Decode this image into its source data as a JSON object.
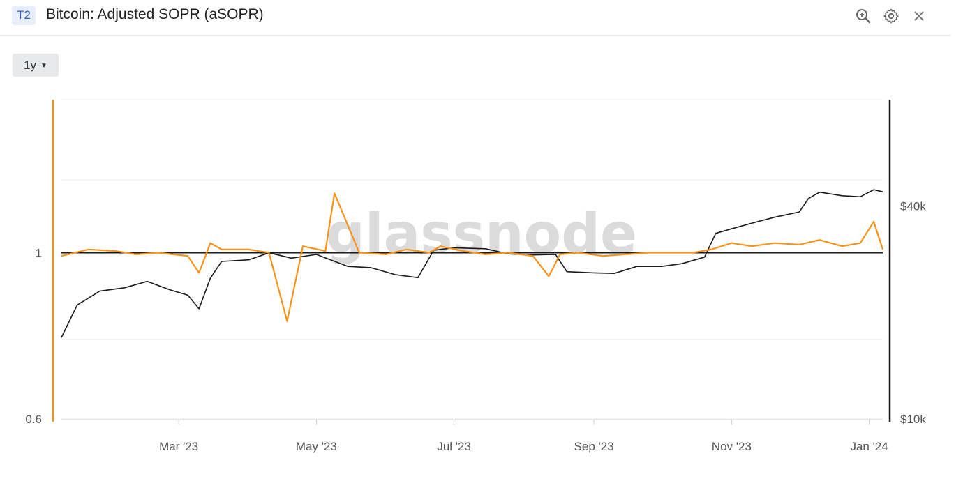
{
  "header": {
    "badge": "T2",
    "title": "Bitcoin: Adjusted SOPR (aSOPR)"
  },
  "icons": [
    "zoom-icon",
    "gear-icon",
    "close-icon"
  ],
  "range_selector": {
    "value": "1y"
  },
  "watermark": "glassnode",
  "colors": {
    "asopr": "#f7931a",
    "price": "#1a1a1a",
    "grid": "#eeeeee",
    "baseline": "#1a1a1a"
  },
  "chart_data": {
    "type": "line",
    "title": "Bitcoin: Adjusted SOPR (aSOPR)",
    "x_ticks": [
      "Mar '23",
      "May '23",
      "Jul '23",
      "Sep '23",
      "Nov '23",
      "Jan '24"
    ],
    "x_tick_dates": [
      "2023-03-01",
      "2023-05-01",
      "2023-07-01",
      "2023-09-01",
      "2023-11-01",
      "2024-01-01"
    ],
    "x_range": [
      "2023-01-08",
      "2024-01-07"
    ],
    "y_left": {
      "ticks": [
        0.6,
        1
      ],
      "tick_labels": [
        "0.6",
        "1"
      ],
      "scale": "log",
      "range": [
        0.6,
        1.6
      ],
      "reference_line": 1
    },
    "y_right": {
      "ticks": [
        10000,
        40000
      ],
      "tick_labels": [
        "$10k",
        "$40k"
      ],
      "scale": "log",
      "range": [
        10000,
        80000
      ]
    },
    "grid": true,
    "series": [
      {
        "axis": "left",
        "x": [
          "2023-01-08",
          "2023-01-20",
          "2023-02-01",
          "2023-02-10",
          "2023-02-20",
          "2023-03-05",
          "2023-03-10",
          "2023-03-15",
          "2023-03-20",
          "2023-04-01",
          "2023-04-10",
          "2023-04-18",
          "2023-04-25",
          "2023-05-05",
          "2023-05-09",
          "2023-05-20",
          "2023-06-01",
          "2023-06-10",
          "2023-06-20",
          "2023-06-25",
          "2023-07-05",
          "2023-07-15",
          "2023-07-25",
          "2023-08-05",
          "2023-08-12",
          "2023-08-17",
          "2023-08-25",
          "2023-09-05",
          "2023-09-15",
          "2023-09-25",
          "2023-10-05",
          "2023-10-15",
          "2023-10-23",
          "2023-11-01",
          "2023-11-10",
          "2023-11-20",
          "2023-12-01",
          "2023-12-10",
          "2023-12-20",
          "2023-12-28",
          "2024-01-03",
          "2024-01-07"
        ],
        "values": [
          0.99,
          1.01,
          1.005,
          0.995,
          1.0,
          0.99,
          0.94,
          1.03,
          1.01,
          1.01,
          1.0,
          0.81,
          1.02,
          1.005,
          1.2,
          1.0,
          0.995,
          1.01,
          1.0,
          1.02,
          1.005,
          0.995,
          1.0,
          0.99,
          0.93,
          0.995,
          1.0,
          0.99,
          0.995,
          1.0,
          1.0,
          1.0,
          1.01,
          1.03,
          1.02,
          1.03,
          1.025,
          1.04,
          1.02,
          1.03,
          1.1,
          1.01
        ]
      },
      {
        "axis": "right",
        "x": [
          "2023-01-08",
          "2023-01-15",
          "2023-01-25",
          "2023-02-05",
          "2023-02-15",
          "2023-02-25",
          "2023-03-05",
          "2023-03-10",
          "2023-03-15",
          "2023-03-20",
          "2023-04-01",
          "2023-04-10",
          "2023-04-20",
          "2023-05-01",
          "2023-05-15",
          "2023-05-25",
          "2023-06-05",
          "2023-06-15",
          "2023-06-22",
          "2023-07-01",
          "2023-07-15",
          "2023-07-25",
          "2023-08-05",
          "2023-08-15",
          "2023-08-20",
          "2023-09-01",
          "2023-09-10",
          "2023-09-20",
          "2023-10-01",
          "2023-10-10",
          "2023-10-20",
          "2023-10-25",
          "2023-11-01",
          "2023-11-10",
          "2023-11-20",
          "2023-12-01",
          "2023-12-05",
          "2023-12-10",
          "2023-12-20",
          "2023-12-28",
          "2024-01-03",
          "2024-01-07"
        ],
        "values": [
          17000,
          21000,
          23000,
          23500,
          24500,
          23200,
          22400,
          20500,
          25000,
          27900,
          28200,
          29500,
          28500,
          29200,
          27000,
          26800,
          25600,
          25100,
          30000,
          30500,
          30300,
          29300,
          29100,
          29200,
          26100,
          25900,
          25800,
          27000,
          27000,
          27500,
          28700,
          33500,
          34500,
          35800,
          37200,
          38500,
          42000,
          43800,
          42800,
          42500,
          44500,
          43900
        ]
      }
    ]
  }
}
